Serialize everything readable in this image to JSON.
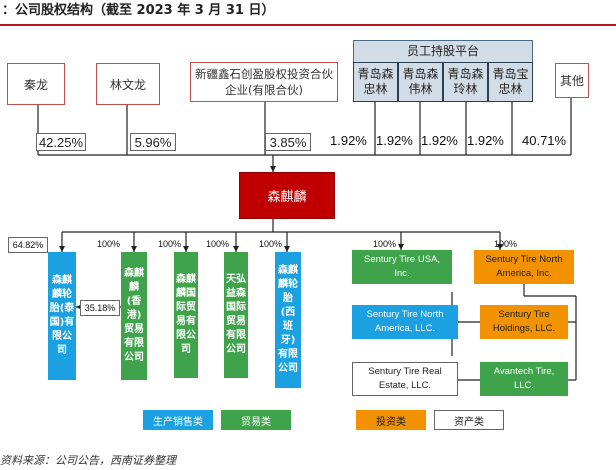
{
  "title": "：公司股权结构（截至 2023 年 3 月 31 日）",
  "shareholders": [
    {
      "name": "秦龙",
      "pct": "42.25%"
    },
    {
      "name": "林文龙",
      "pct": "5.96%"
    },
    {
      "name": "新疆鑫石创盈股权投资合伙企业(有限合伙)",
      "pct": "3.85%"
    },
    {
      "name": "其他",
      "pct": "40.71%"
    }
  ],
  "platform": {
    "title": "员工持股平台",
    "members": [
      {
        "name": "青岛森忠林",
        "pct": "1.92%"
      },
      {
        "name": "青岛森伟林",
        "pct": "1.92%"
      },
      {
        "name": "青岛森玲林",
        "pct": "1.92%"
      },
      {
        "name": "青岛宝忠林",
        "pct": "1.92%"
      }
    ]
  },
  "company": "森麒麟",
  "subsidiaries": [
    {
      "name": "森麒麟轮胎(泰国)有限公司",
      "pct": "64.82%",
      "category": "生产销售类"
    },
    {
      "name": "森麒麟(香港)贸易有限公司",
      "pct": "100%",
      "category": "贸易类"
    },
    {
      "name": "森麒麟国际贸易有限公司",
      "pct": "100%",
      "category": "贸易类"
    },
    {
      "name": "天弘益森国际贸易有限公司",
      "pct": "100%",
      "category": "贸易类"
    },
    {
      "name": "森麒麟轮胎(西班牙)有限公司",
      "pct": "100%",
      "category": "生产销售类"
    },
    {
      "name": "Sentury Tire USA, Inc.",
      "pct": "100%",
      "category": "贸易类"
    },
    {
      "name": "Sentury Tire North America, Inc.",
      "pct": "100%",
      "category": "投资类"
    },
    {
      "name": "Sentury Tire North America, LLC.",
      "pct": "",
      "category": "生产销售类"
    },
    {
      "name": "Sentury Tire Holdings, LLC.",
      "pct": "",
      "category": "投资类"
    },
    {
      "name": "Sentury Tire Real Estate, LLC.",
      "pct": "",
      "category": "资产类"
    },
    {
      "name": "Avantech Tire, LLC.",
      "pct": "",
      "category": "贸易类"
    }
  ],
  "cross_holding_pct": "35.18%",
  "legend": [
    "生产销售类",
    "贸易类",
    "投资类",
    "资产类"
  ],
  "colors": {
    "blue": "#1ba1e2",
    "green": "#3ea34a",
    "orange": "#f29200",
    "red": "#c00000",
    "platform": "#d2dce6"
  },
  "source": "资料来源：公司公告，西南证券整理"
}
